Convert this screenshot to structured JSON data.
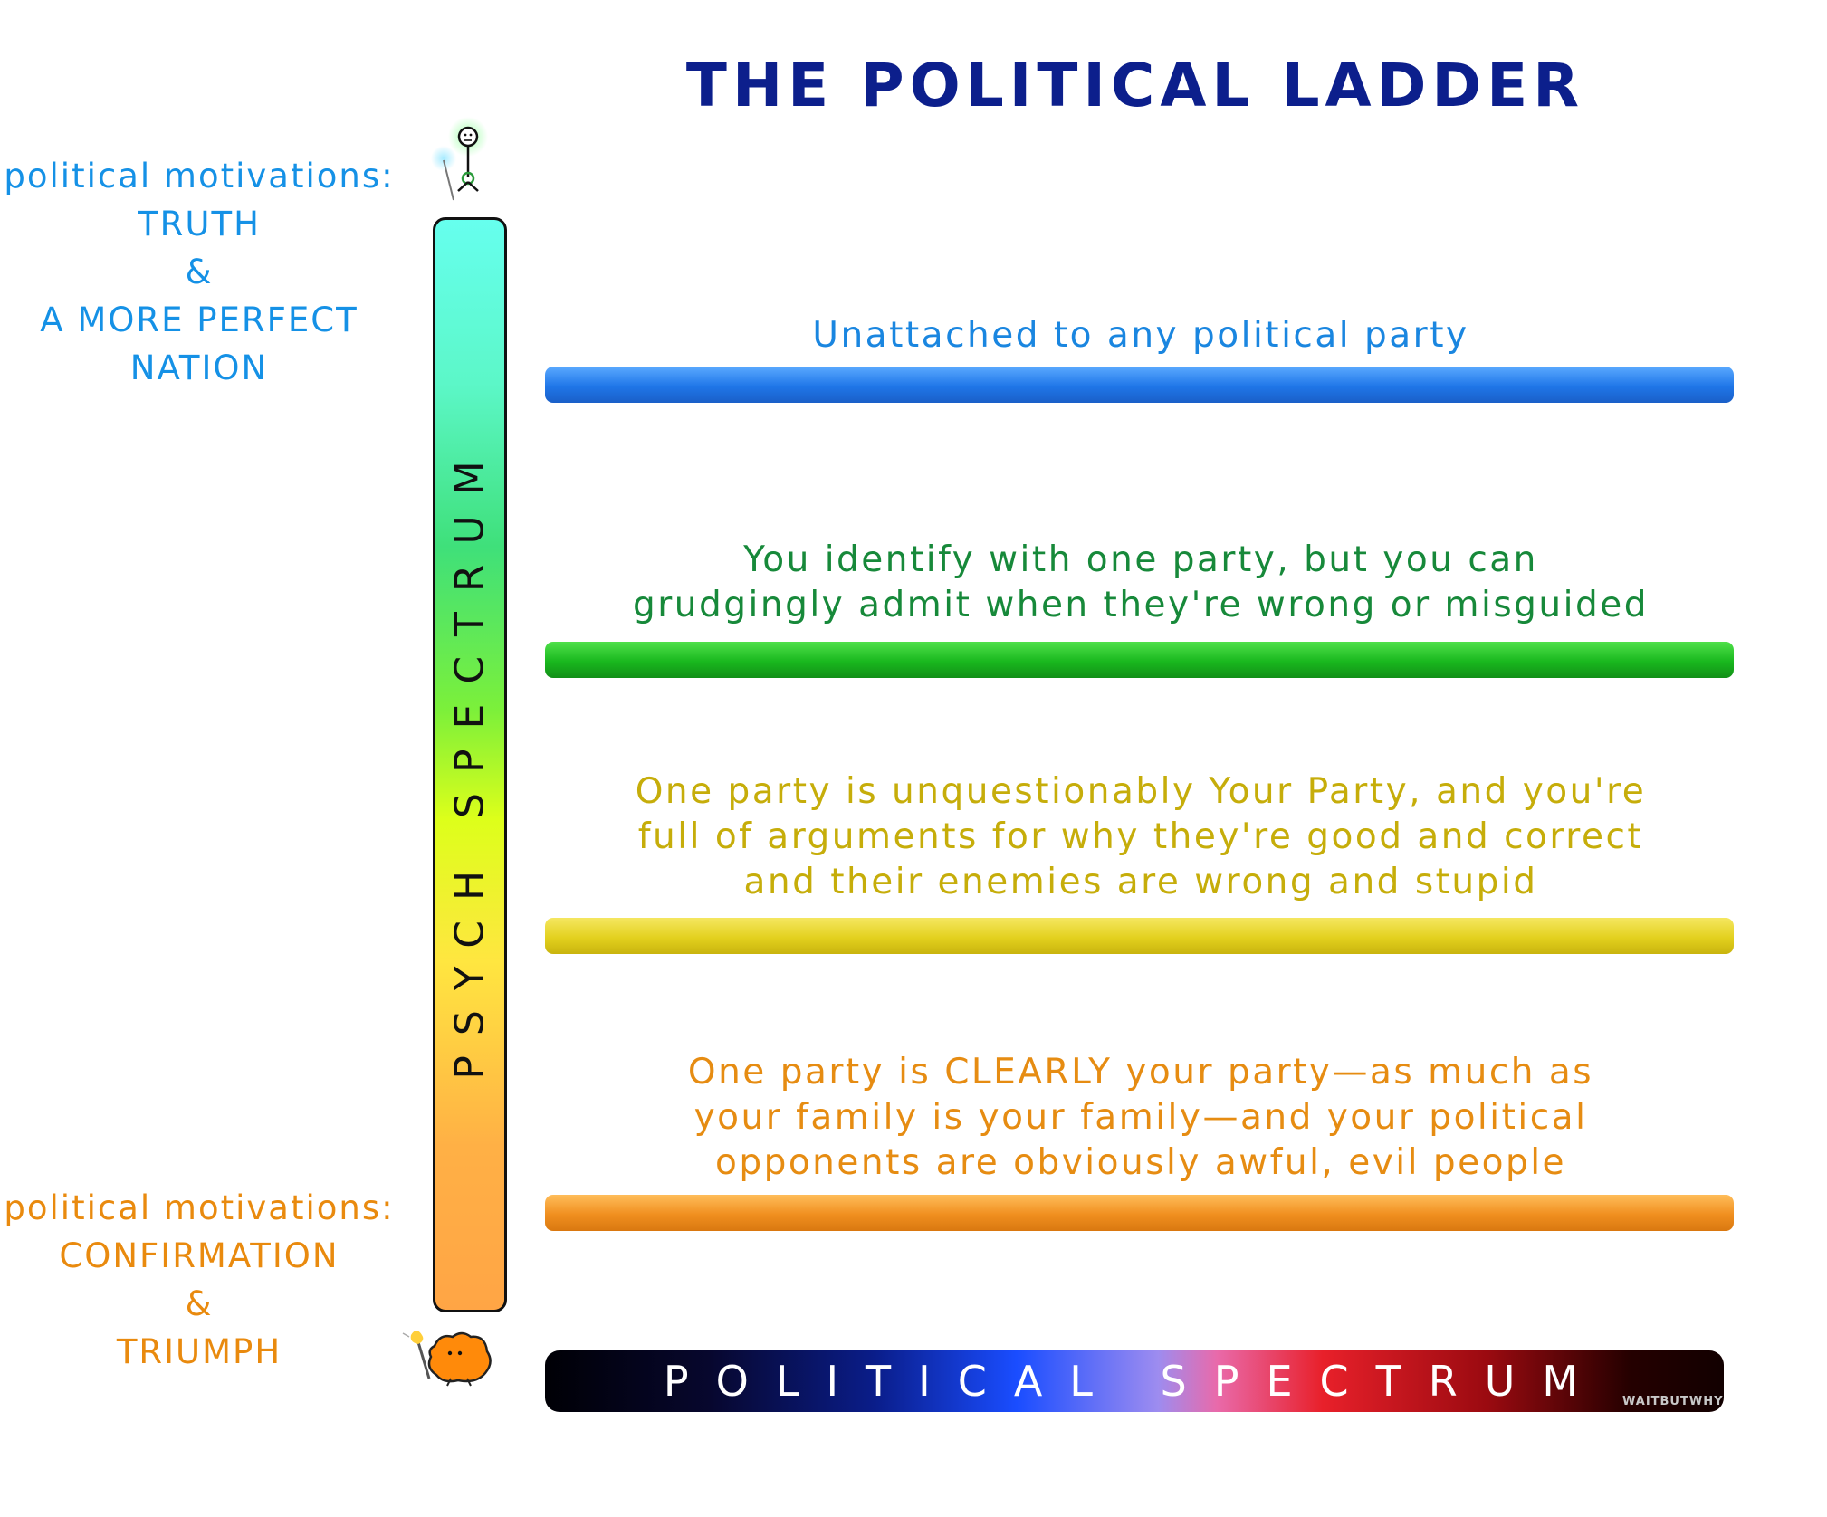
{
  "title": "THE POLITICAL LADDER",
  "top_motivation": {
    "lines": [
      "political motivations:",
      "TRUTH",
      "&",
      "A MORE PERFECT",
      "NATION"
    ],
    "color": "#1591e6"
  },
  "bottom_motivation": {
    "lines": [
      "political motivations:",
      "CONFIRMATION",
      "&",
      "TRIUMPH"
    ],
    "color": "#e98a0e"
  },
  "psych_spectrum_label": "PSYCH SPECTRUM",
  "political_spectrum_label": "POLITICAL SPECTRUM",
  "watermark": "WAITBUTWHY",
  "rungs": [
    {
      "lines": [
        "Unattached to any political party"
      ],
      "text_color": "#1a86e0",
      "bar_color": "#1f76e8"
    },
    {
      "lines": [
        "You identify with one party, but you can",
        "grudgingly admit when they're wrong or misguided"
      ],
      "text_color": "#17893a",
      "bar_color": "#19b81e"
    },
    {
      "lines": [
        "One party is unquestionably Your Party, and you're",
        "full of arguments for why they're good and correct",
        "and their enemies are wrong and stupid"
      ],
      "text_color": "#c6ad0a",
      "bar_color": "#e3d11e"
    },
    {
      "lines": [
        "One party is CLEARLY your party—as much as",
        "your family is your family—and your political",
        "opponents are obviously awful, evil people"
      ],
      "text_color": "#e68c12",
      "bar_color": "#f08f1f"
    }
  ],
  "icons": {
    "top": "glowing-stick-figure-with-wand-icon",
    "bottom": "orange-blob-creature-with-torch-icon"
  }
}
